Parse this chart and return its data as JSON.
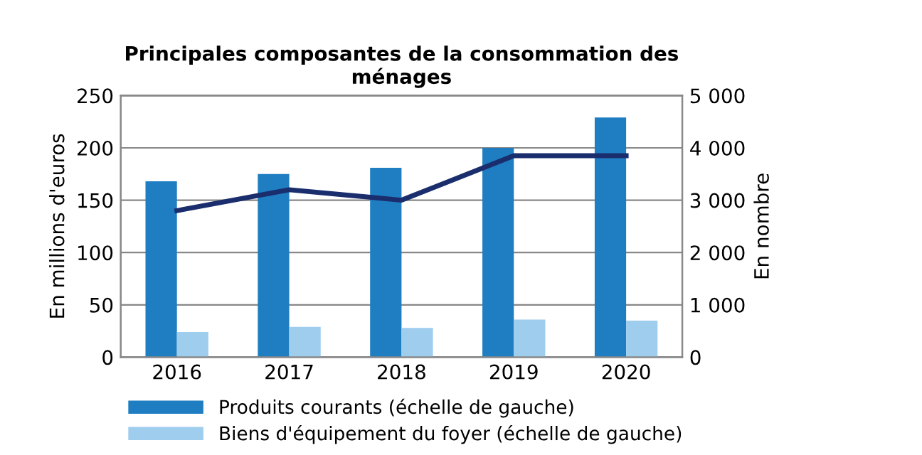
{
  "chart_data": {
    "type": "bar",
    "title": "Principales composantes de la consommation des\nménages",
    "ylabel": "En millions d'euros",
    "y2label": "En nombre",
    "categories": [
      "2016",
      "2017",
      "2018",
      "2019",
      "2020"
    ],
    "series": [
      {
        "name": "Produits courants (échelle de gauche)",
        "color": "#1f7ec1",
        "values": [
          168,
          175,
          181,
          200,
          229
        ]
      },
      {
        "name": "Biens d'équipement du foyer (échelle de gauche)",
        "color": "#9fcdee",
        "values": [
          24,
          29,
          28,
          36,
          35
        ]
      },
      {
        "type": "line",
        "axis": "y2",
        "color": "#1a2e6e",
        "values": [
          2800,
          3200,
          3000,
          3850,
          3850
        ]
      }
    ],
    "ylim": [
      0,
      250
    ],
    "yticks": [
      0,
      50,
      100,
      150,
      200,
      250
    ],
    "y2lim": [
      0,
      5000
    ],
    "y2ticks": [
      0,
      {
        "value": 1000,
        "label": "1 000"
      },
      {
        "value": 2000,
        "label": "2 000"
      },
      {
        "value": 3000,
        "label": "3 000"
      },
      {
        "value": 4000,
        "label": "4 000"
      },
      {
        "value": 5000,
        "label": "5 000"
      }
    ],
    "grid": "y",
    "legend": "bottom"
  }
}
